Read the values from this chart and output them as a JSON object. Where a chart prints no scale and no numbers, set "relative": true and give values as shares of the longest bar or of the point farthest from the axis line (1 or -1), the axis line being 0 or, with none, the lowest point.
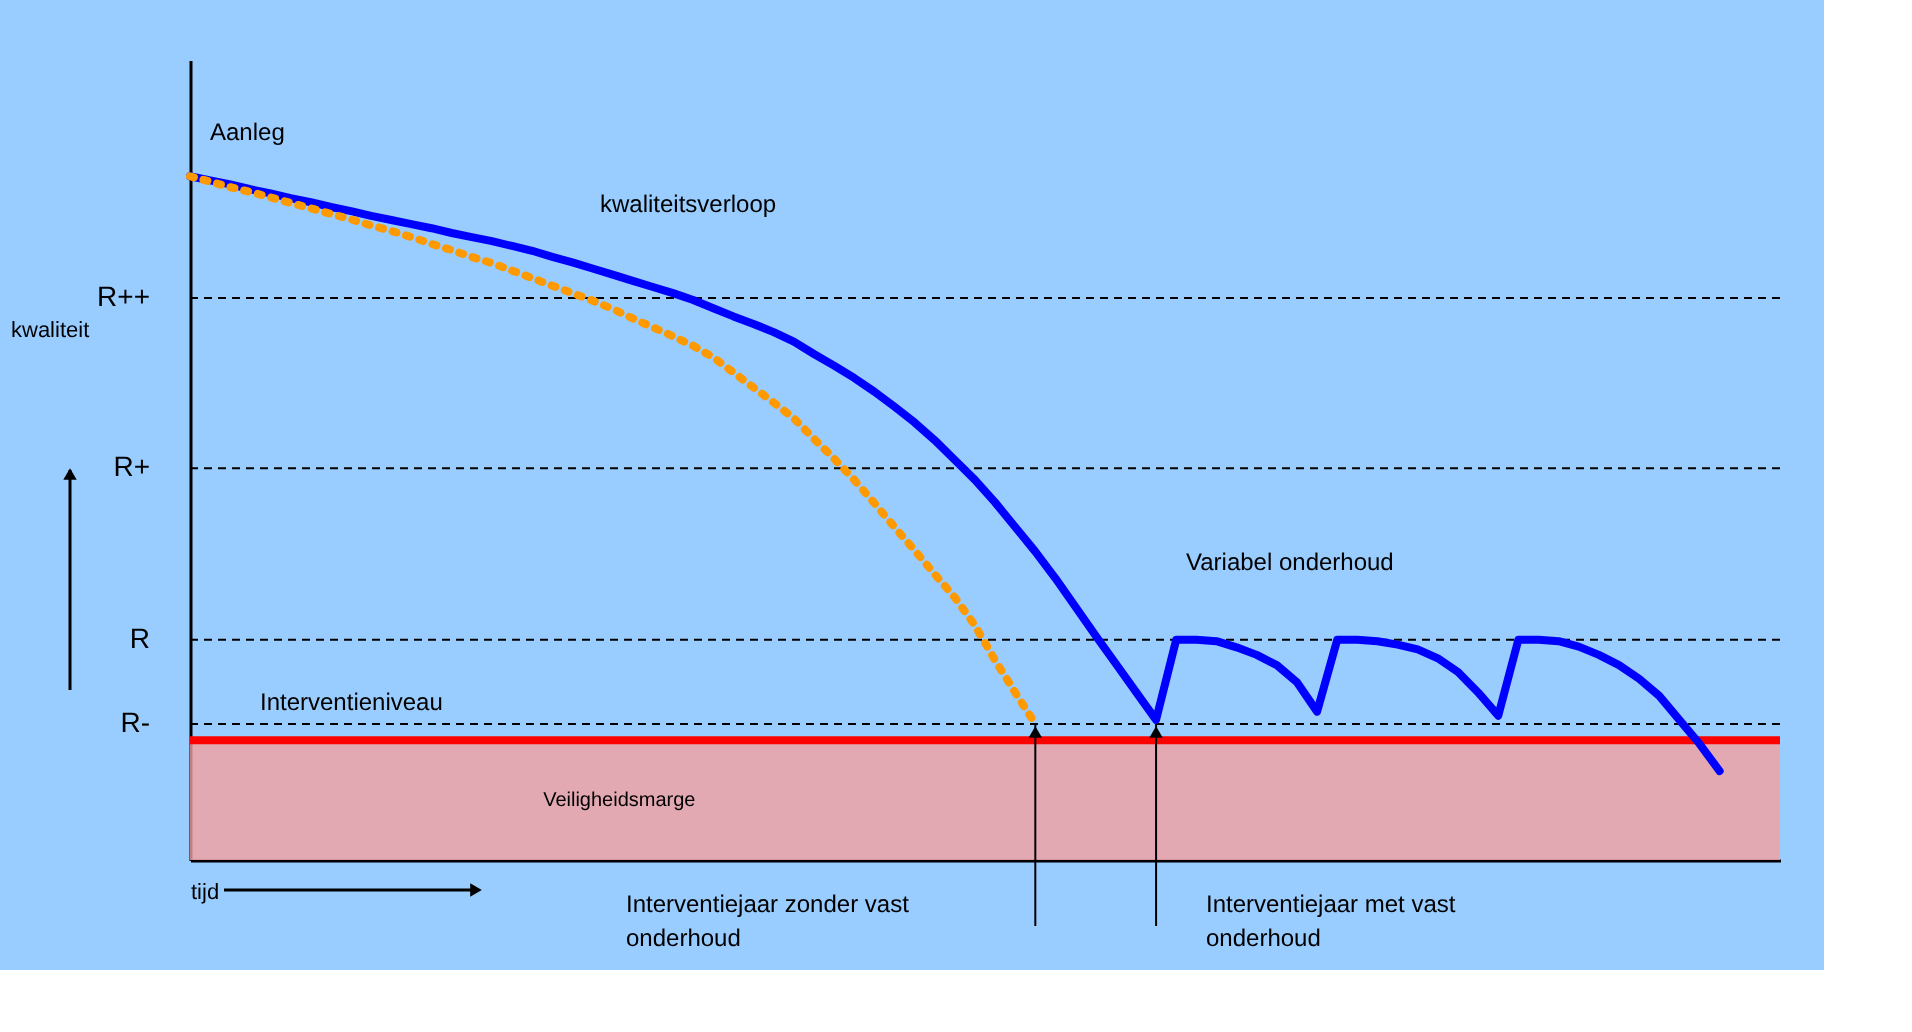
{
  "chart_data": {
    "type": "line",
    "relative": true,
    "xlabel": "tijd",
    "ylabel": "kwaliteit",
    "categories": [
      null,
      null,
      null,
      null,
      null,
      null,
      null,
      null,
      null,
      null,
      null,
      null,
      null,
      null,
      null,
      null,
      null,
      null,
      null,
      null,
      null,
      null,
      null,
      null,
      null,
      null,
      null,
      null,
      null,
      null,
      null,
      null,
      null,
      null,
      null,
      null,
      null,
      null,
      null,
      null,
      null,
      null,
      null,
      null,
      null,
      null,
      null,
      null,
      null,
      null,
      null,
      null,
      null,
      null,
      null,
      null,
      null,
      null,
      null,
      null,
      null,
      null,
      null,
      null,
      null,
      null,
      null,
      null,
      null,
      null,
      null,
      null,
      null,
      null,
      null,
      null,
      null
    ],
    "series": [
      {
        "color": "#0000ff",
        "line_style": "solid",
        "values": [
          1.0,
          0.994,
          0.988,
          0.981,
          0.975,
          0.968,
          0.962,
          0.955,
          0.949,
          0.942,
          0.936,
          0.93,
          0.924,
          0.917,
          0.911,
          0.905,
          0.898,
          0.891,
          0.882,
          0.874,
          0.865,
          0.856,
          0.847,
          0.838,
          0.829,
          0.819,
          0.807,
          0.795,
          0.784,
          0.772,
          0.758,
          0.74,
          0.723,
          0.705,
          0.685,
          0.663,
          0.64,
          0.614,
          0.585,
          0.556,
          0.523,
          0.487,
          0.451,
          0.412,
          0.37,
          0.328,
          0.287,
          0.246,
          0.205,
          0.322,
          0.322,
          0.32,
          0.311,
          0.3,
          0.285,
          0.26,
          0.217,
          0.322,
          0.322,
          0.32,
          0.315,
          0.308,
          0.295,
          0.275,
          0.245,
          0.211,
          0.322,
          0.322,
          0.32,
          0.312,
          0.3,
          0.285,
          0.265,
          0.24,
          0.205,
          0.17,
          0.13
        ]
      },
      {
        "color": "#ff9900",
        "line_style": "dotted",
        "values": [
          1.0,
          0.992,
          0.984,
          0.977,
          0.969,
          0.961,
          0.953,
          0.945,
          0.937,
          0.928,
          0.92,
          0.911,
          0.901,
          0.892,
          0.882,
          0.873,
          0.862,
          0.851,
          0.84,
          0.829,
          0.818,
          0.806,
          0.792,
          0.779,
          0.766,
          0.752,
          0.735,
          0.713,
          0.691,
          0.669,
          0.646,
          0.616,
          0.587,
          0.556,
          0.522,
          0.487,
          0.453,
          0.418,
          0.384,
          0.343,
          0.292,
          0.245,
          0.199,
          null,
          null,
          null,
          null,
          null,
          null,
          null,
          null,
          null,
          null,
          null,
          null,
          null,
          null,
          null,
          null,
          null,
          null,
          null,
          null,
          null,
          null,
          null,
          null,
          null,
          null,
          null,
          null,
          null,
          null,
          null,
          null,
          null,
          null
        ]
      }
    ],
    "ref_lines": [
      {
        "axis": "y",
        "value": 0.822,
        "label": "R++",
        "line_style": "dashed",
        "color": "#000000"
      },
      {
        "axis": "y",
        "value": 0.573,
        "label": "R+",
        "line_style": "dashed",
        "color": "#000000"
      },
      {
        "axis": "y",
        "value": 0.322,
        "label": "R",
        "line_style": "dashed",
        "color": "#000000"
      },
      {
        "axis": "y",
        "value": 0.199,
        "label": "R-",
        "line_style": "dashed",
        "color": "#000000"
      },
      {
        "axis": "y",
        "value": 0.175,
        "label": "Interventieniveau",
        "line_style": "solid",
        "color": "#ff0000"
      }
    ],
    "bands": [
      {
        "axis": "y",
        "from": 0,
        "to": 0.175,
        "label": "Veiligheidsmarge",
        "color": "#f4a0a0"
      }
    ],
    "annotations": [
      {
        "text": "Aanleg",
        "y": 1.0
      },
      "kwaliteitsverloop",
      "Variabel onderhoud",
      "Interventiejaar zonder vast onderhoud",
      "Interventiejaar met vast onderhoud"
    ]
  }
}
